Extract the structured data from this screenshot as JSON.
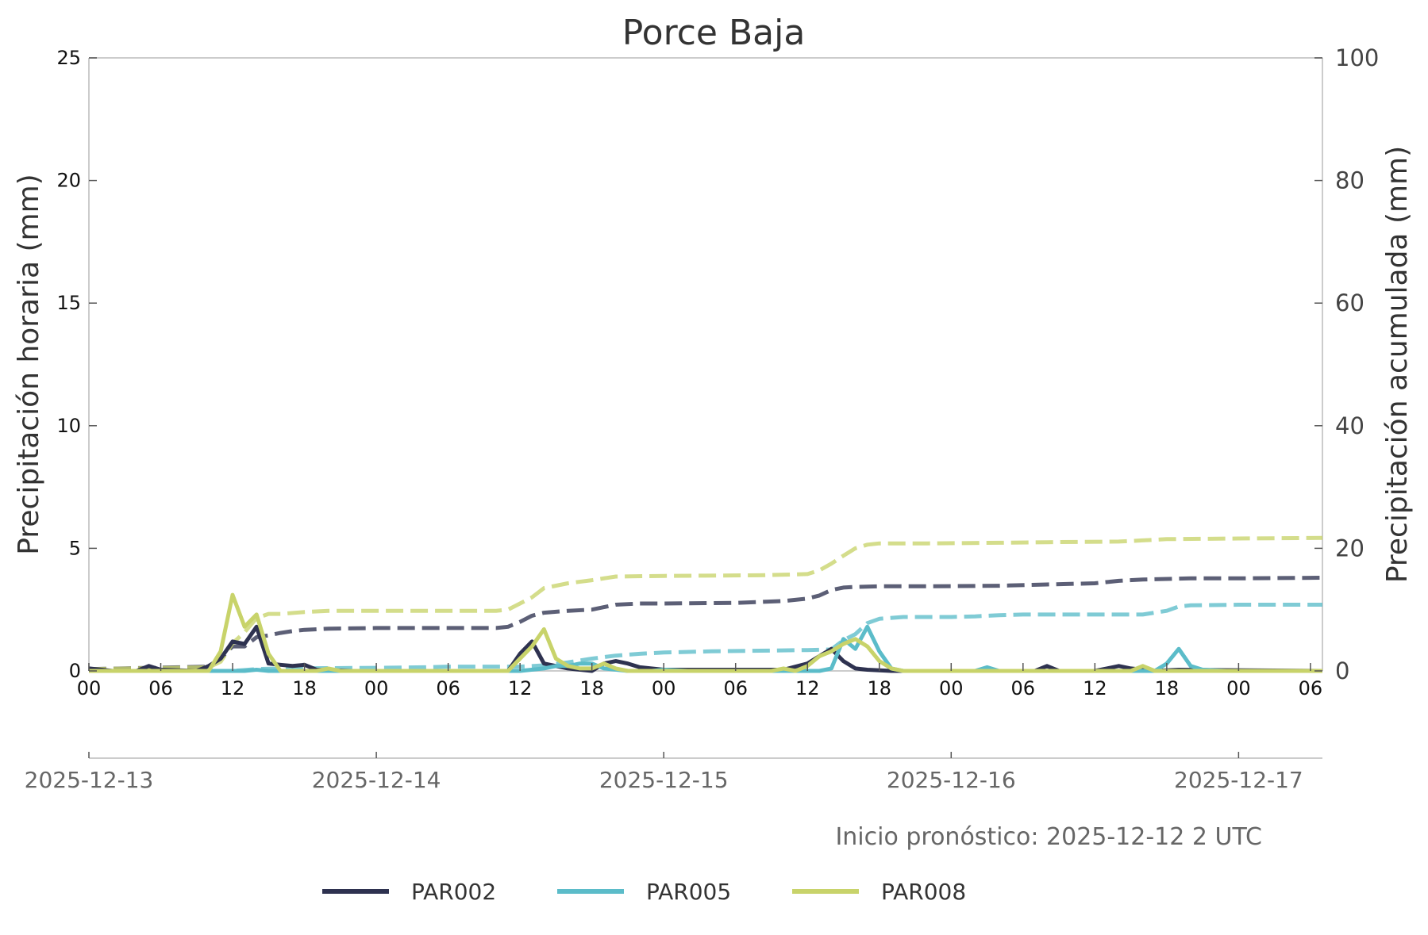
{
  "colors": {
    "PAR002": "#2e3250",
    "PAR005": "#5bbcc9",
    "PAR008": "#c8d36a",
    "axis": "#cccccc",
    "text": "#333333"
  },
  "chart_data": {
    "type": "line",
    "title": "Porce Baja",
    "ylabel_left": "Precipitación horaria (mm)",
    "ylabel_right": "Precipitación acumulada (mm)",
    "ylim_left": [
      0,
      25
    ],
    "ylim_right": [
      0,
      100
    ],
    "yticks_left": [
      "0",
      "5",
      "10",
      "15",
      "20",
      "25"
    ],
    "yticks_right": [
      "0",
      "20",
      "40",
      "60",
      "80",
      "100"
    ],
    "x_hours_range": [
      0,
      103
    ],
    "x_hour_ticks": [
      "00",
      "06",
      "12",
      "18",
      "00",
      "06",
      "12",
      "18",
      "00",
      "06",
      "12",
      "18",
      "00",
      "06",
      "12",
      "18",
      "00",
      "06"
    ],
    "x_date_ticks": [
      "2025-12-13",
      "2025-12-14",
      "2025-12-15",
      "2025-12-16",
      "2025-12-17"
    ],
    "grid": false,
    "legend_position": "bottom",
    "annotation": "Inicio pronóstico: 2025-12-12 2 UTC",
    "series": [
      {
        "name": "PAR002",
        "kind": "hourly",
        "points": [
          [
            0,
            0.1
          ],
          [
            2,
            0
          ],
          [
            4,
            0
          ],
          [
            5,
            0.2
          ],
          [
            6,
            0.05
          ],
          [
            9,
            0
          ],
          [
            10,
            0.2
          ],
          [
            11,
            0.5
          ],
          [
            12,
            1.2
          ],
          [
            13,
            1.1
          ],
          [
            14,
            1.8
          ],
          [
            15,
            0.3
          ],
          [
            16,
            0.25
          ],
          [
            17,
            0.2
          ],
          [
            18,
            0.25
          ],
          [
            19,
            0.05
          ],
          [
            22,
            0
          ],
          [
            35,
            0
          ],
          [
            36,
            0.7
          ],
          [
            37,
            1.2
          ],
          [
            38,
            0.3
          ],
          [
            40,
            0.1
          ],
          [
            42,
            0
          ],
          [
            43,
            0.3
          ],
          [
            44,
            0.4
          ],
          [
            45,
            0.3
          ],
          [
            46,
            0.15
          ],
          [
            48,
            0.05
          ],
          [
            51,
            0.05
          ],
          [
            54,
            0.05
          ],
          [
            56,
            0.05
          ],
          [
            58,
            0.05
          ],
          [
            60,
            0.3
          ],
          [
            61,
            0.6
          ],
          [
            62,
            0.9
          ],
          [
            63,
            0.4
          ],
          [
            64,
            0.1
          ],
          [
            65,
            0.05
          ],
          [
            67,
            0
          ],
          [
            79,
            0
          ],
          [
            80,
            0.2
          ],
          [
            81,
            0
          ],
          [
            84,
            0
          ],
          [
            85,
            0.1
          ],
          [
            86,
            0.2
          ],
          [
            87,
            0.1
          ],
          [
            89,
            0
          ],
          [
            91,
            0.05
          ],
          [
            103,
            0
          ]
        ]
      },
      {
        "name": "PAR005",
        "kind": "hourly",
        "points": [
          [
            0,
            0
          ],
          [
            13,
            0
          ],
          [
            14,
            0.05
          ],
          [
            15,
            0
          ],
          [
            36,
            0
          ],
          [
            38,
            0.1
          ],
          [
            39,
            0.2
          ],
          [
            40,
            0.2
          ],
          [
            41,
            0.3
          ],
          [
            42,
            0.3
          ],
          [
            43,
            0.1
          ],
          [
            45,
            0
          ],
          [
            47,
            0
          ],
          [
            48,
            0.05
          ],
          [
            50,
            0
          ],
          [
            60,
            0
          ],
          [
            61,
            0
          ],
          [
            62,
            0.1
          ],
          [
            63,
            1.3
          ],
          [
            64,
            0.9
          ],
          [
            65,
            1.8
          ],
          [
            66,
            0.8
          ],
          [
            67,
            0.1
          ],
          [
            68,
            0
          ],
          [
            74,
            0
          ],
          [
            75,
            0.15
          ],
          [
            76,
            0
          ],
          [
            89,
            0
          ],
          [
            90,
            0.3
          ],
          [
            91,
            0.9
          ],
          [
            92,
            0.2
          ],
          [
            93,
            0.05
          ],
          [
            95,
            0
          ],
          [
            103,
            0
          ]
        ]
      },
      {
        "name": "PAR008",
        "kind": "hourly",
        "points": [
          [
            0,
            0
          ],
          [
            10,
            0
          ],
          [
            11,
            0.8
          ],
          [
            12,
            3.1
          ],
          [
            13,
            1.8
          ],
          [
            14,
            2.3
          ],
          [
            15,
            0.7
          ],
          [
            16,
            0
          ],
          [
            19,
            0
          ],
          [
            20,
            0.1
          ],
          [
            21,
            0
          ],
          [
            35,
            0
          ],
          [
            36,
            0.5
          ],
          [
            37,
            1
          ],
          [
            38,
            1.7
          ],
          [
            39,
            0.5
          ],
          [
            40,
            0.2
          ],
          [
            41,
            0.1
          ],
          [
            42,
            0.1
          ],
          [
            43,
            0.3
          ],
          [
            44,
            0.1
          ],
          [
            45,
            0
          ],
          [
            57,
            0
          ],
          [
            58,
            0.1
          ],
          [
            59,
            0
          ],
          [
            60,
            0.2
          ],
          [
            61,
            0.6
          ],
          [
            62,
            0.8
          ],
          [
            63,
            1.1
          ],
          [
            64,
            1.3
          ],
          [
            65,
            1.0
          ],
          [
            66,
            0.4
          ],
          [
            67,
            0.1
          ],
          [
            68,
            0
          ],
          [
            87,
            0
          ],
          [
            88,
            0.2
          ],
          [
            89,
            0
          ],
          [
            103,
            0
          ]
        ]
      },
      {
        "name": "PAR002",
        "kind": "accumulated",
        "points": [
          [
            0,
            0.3
          ],
          [
            10,
            0.7
          ],
          [
            11,
            2
          ],
          [
            12,
            4
          ],
          [
            13,
            4
          ],
          [
            14,
            5.5
          ],
          [
            15,
            5.8
          ],
          [
            16,
            6.2
          ],
          [
            17,
            6.5
          ],
          [
            18,
            6.7
          ],
          [
            20,
            6.9
          ],
          [
            24,
            7
          ],
          [
            34,
            7
          ],
          [
            35,
            7.2
          ],
          [
            36,
            8
          ],
          [
            37,
            9
          ],
          [
            38,
            9.5
          ],
          [
            40,
            9.8
          ],
          [
            42,
            10
          ],
          [
            43,
            10.4
          ],
          [
            44,
            10.8
          ],
          [
            46,
            11
          ],
          [
            48,
            11
          ],
          [
            54,
            11.1
          ],
          [
            58,
            11.4
          ],
          [
            60,
            11.8
          ],
          [
            61,
            12.3
          ],
          [
            62,
            13.2
          ],
          [
            63,
            13.6
          ],
          [
            64,
            13.7
          ],
          [
            66,
            13.8
          ],
          [
            70,
            13.8
          ],
          [
            76,
            13.9
          ],
          [
            80,
            14.1
          ],
          [
            84,
            14.3
          ],
          [
            86,
            14.7
          ],
          [
            88,
            14.9
          ],
          [
            92,
            15.1
          ],
          [
            96,
            15.1
          ],
          [
            103,
            15.2
          ]
        ]
      },
      {
        "name": "PAR005",
        "kind": "accumulated",
        "points": [
          [
            0,
            0
          ],
          [
            12,
            0
          ],
          [
            14,
            0.3
          ],
          [
            16,
            0.4
          ],
          [
            24,
            0.5
          ],
          [
            28,
            0.6
          ],
          [
            30,
            0.7
          ],
          [
            36,
            0.7
          ],
          [
            38,
            0.9
          ],
          [
            40,
            1.4
          ],
          [
            42,
            2
          ],
          [
            44,
            2.5
          ],
          [
            46,
            2.8
          ],
          [
            48,
            3.0
          ],
          [
            52,
            3.2
          ],
          [
            56,
            3.3
          ],
          [
            60,
            3.4
          ],
          [
            62,
            3.5
          ],
          [
            63,
            5
          ],
          [
            64,
            6
          ],
          [
            65,
            7.8
          ],
          [
            66,
            8.5
          ],
          [
            68,
            8.8
          ],
          [
            72,
            8.8
          ],
          [
            74,
            8.9
          ],
          [
            76,
            9.1
          ],
          [
            78,
            9.2
          ],
          [
            88,
            9.2
          ],
          [
            90,
            9.8
          ],
          [
            91,
            10.5
          ],
          [
            92,
            10.7
          ],
          [
            96,
            10.8
          ],
          [
            103,
            10.8
          ]
        ]
      },
      {
        "name": "PAR008",
        "kind": "accumulated",
        "points": [
          [
            0,
            0.3
          ],
          [
            10,
            0.6
          ],
          [
            11,
            1.5
          ],
          [
            12,
            4.5
          ],
          [
            13,
            6.3
          ],
          [
            14,
            8.6
          ],
          [
            15,
            9.3
          ],
          [
            16,
            9.3
          ],
          [
            18,
            9.6
          ],
          [
            20,
            9.8
          ],
          [
            24,
            9.8
          ],
          [
            34,
            9.8
          ],
          [
            35,
            10
          ],
          [
            36,
            11
          ],
          [
            37,
            12
          ],
          [
            38,
            13.5
          ],
          [
            40,
            14.3
          ],
          [
            42,
            14.8
          ],
          [
            44,
            15.4
          ],
          [
            48,
            15.5
          ],
          [
            56,
            15.6
          ],
          [
            60,
            15.8
          ],
          [
            61,
            16.4
          ],
          [
            62,
            17.5
          ],
          [
            63,
            18.8
          ],
          [
            64,
            20
          ],
          [
            65,
            20.6
          ],
          [
            66,
            20.8
          ],
          [
            70,
            20.8
          ],
          [
            76,
            20.9
          ],
          [
            80,
            21
          ],
          [
            86,
            21.1
          ],
          [
            88,
            21.3
          ],
          [
            90,
            21.5
          ],
          [
            96,
            21.6
          ],
          [
            103,
            21.7
          ]
        ]
      }
    ]
  }
}
